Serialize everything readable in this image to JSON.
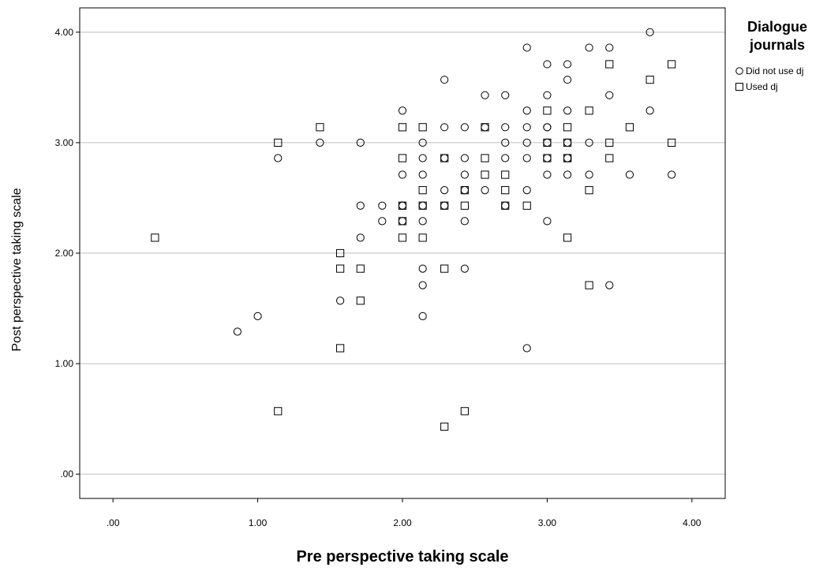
{
  "chart_data": {
    "type": "scatter",
    "title": "",
    "xlabel": "Pre perspective taking scale",
    "ylabel": "Post perspective taking scale",
    "xlim": [
      -0.23,
      4.23
    ],
    "ylim": [
      -0.22,
      4.22
    ],
    "x_ticks": [
      0,
      1,
      2,
      3,
      4
    ],
    "y_ticks": [
      0,
      1,
      2,
      3,
      4
    ],
    "x_tick_labels": [
      ".00",
      "1.00",
      "2.00",
      "3.00",
      "4.00"
    ],
    "y_tick_labels": [
      ".00",
      "1.00",
      "2.00",
      "3.00",
      "4.00"
    ],
    "grid": "horizontal",
    "legend": {
      "title_line1": "Dialogue",
      "title_line2": "journals",
      "placement": "right",
      "entries": [
        "Did not use dj",
        "Used dj"
      ]
    },
    "colors": {
      "marker_stroke": "#000000",
      "gridline": "#bfbfbf",
      "axis": "#000000"
    },
    "series": [
      {
        "name": "Did not use dj",
        "marker": "circle",
        "x": [
          0.86,
          1.0,
          1.14,
          1.43,
          1.57,
          1.71,
          1.71,
          1.71,
          1.86,
          1.86,
          2.0,
          2.0,
          2.0,
          2.0,
          2.0,
          2.14,
          2.14,
          2.14,
          2.14,
          2.14,
          2.14,
          2.14,
          2.14,
          2.29,
          2.29,
          2.29,
          2.29,
          2.29,
          2.43,
          2.43,
          2.43,
          2.43,
          2.43,
          2.43,
          2.57,
          2.57,
          2.57,
          2.71,
          2.71,
          2.71,
          2.71,
          2.71,
          2.86,
          2.86,
          2.86,
          2.86,
          2.86,
          2.86,
          2.86,
          3.0,
          3.0,
          3.0,
          3.0,
          3.0,
          3.0,
          3.0,
          3.0,
          3.14,
          3.14,
          3.14,
          3.14,
          3.14,
          3.14,
          3.29,
          3.29,
          3.29,
          3.43,
          3.43,
          3.43,
          3.57,
          3.71,
          3.71,
          3.86
        ],
        "y": [
          1.29,
          1.43,
          2.86,
          3.0,
          1.57,
          3.0,
          2.43,
          2.14,
          2.43,
          2.29,
          3.29,
          2.71,
          2.43,
          2.29,
          2.43,
          3.0,
          2.86,
          2.71,
          2.43,
          2.29,
          1.86,
          1.71,
          1.43,
          3.57,
          3.14,
          2.86,
          2.57,
          2.43,
          3.14,
          2.86,
          2.71,
          2.57,
          2.29,
          1.86,
          3.43,
          3.14,
          2.57,
          3.43,
          3.14,
          3.0,
          2.86,
          2.43,
          3.86,
          3.29,
          3.14,
          3.0,
          2.86,
          2.57,
          1.14,
          3.71,
          3.43,
          3.14,
          3.0,
          2.86,
          2.71,
          3.14,
          2.29,
          3.71,
          3.57,
          3.29,
          3.0,
          2.86,
          2.71,
          3.86,
          3.0,
          2.71,
          3.86,
          3.43,
          1.71,
          2.71,
          4.0,
          3.29,
          2.71
        ]
      },
      {
        "name": "Used dj",
        "marker": "square",
        "x": [
          0.29,
          1.14,
          1.14,
          1.43,
          1.57,
          1.57,
          1.57,
          1.71,
          1.71,
          2.0,
          2.0,
          2.0,
          2.0,
          2.0,
          2.14,
          2.14,
          2.14,
          2.14,
          2.29,
          2.29,
          2.29,
          2.29,
          2.43,
          2.43,
          2.43,
          2.57,
          2.57,
          2.57,
          2.71,
          2.71,
          2.71,
          2.86,
          3.0,
          3.0,
          3.0,
          3.14,
          3.14,
          3.14,
          3.14,
          3.14,
          3.29,
          3.29,
          3.29,
          3.43,
          3.43,
          3.43,
          3.57,
          3.71,
          3.86,
          3.86
        ],
        "y": [
          2.14,
          3.0,
          0.57,
          3.14,
          2.0,
          1.86,
          1.14,
          1.86,
          1.57,
          3.14,
          2.86,
          2.43,
          2.29,
          2.14,
          3.14,
          2.57,
          2.43,
          2.14,
          2.86,
          2.43,
          1.86,
          0.43,
          2.57,
          2.43,
          0.57,
          3.14,
          2.86,
          2.71,
          2.71,
          2.57,
          2.43,
          2.43,
          3.29,
          3.0,
          2.86,
          3.14,
          3.0,
          2.86,
          2.86,
          2.14,
          3.29,
          2.57,
          1.71,
          3.71,
          3.0,
          2.86,
          3.14,
          3.57,
          3.71,
          3.0
        ]
      }
    ]
  }
}
